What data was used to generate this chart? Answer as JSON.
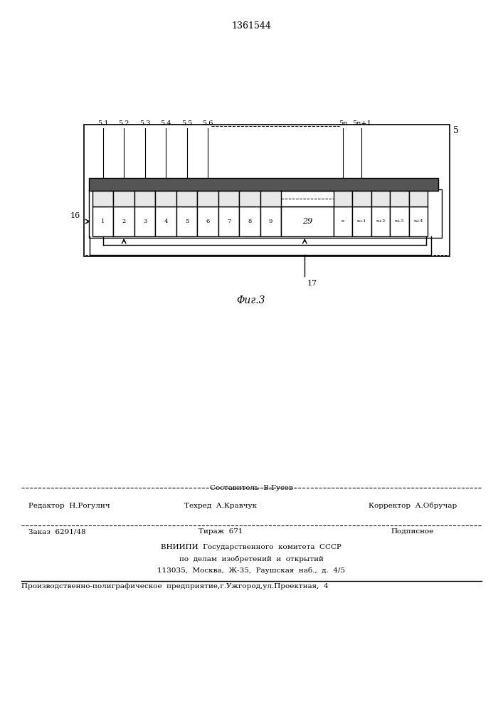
{
  "title": "1361544",
  "fig_label": "Φиг.3",
  "bg_color": "#ffffff",
  "line_color": "#000000",
  "label_5": "5",
  "label_16": "16",
  "label_17": "17",
  "top_labels": [
    "5.1",
    "5.2",
    "5.3",
    "5.4",
    "5.5",
    "5.6",
    "5n",
    "5n+1"
  ],
  "cell_labels_left": [
    "1",
    "2",
    "3",
    "4",
    "5",
    "6",
    "7",
    "8",
    "9"
  ],
  "cell_label_mid": "29",
  "cell_labels_right": [
    "n",
    "n+1",
    "n+2",
    "n+3",
    "n+4"
  ]
}
